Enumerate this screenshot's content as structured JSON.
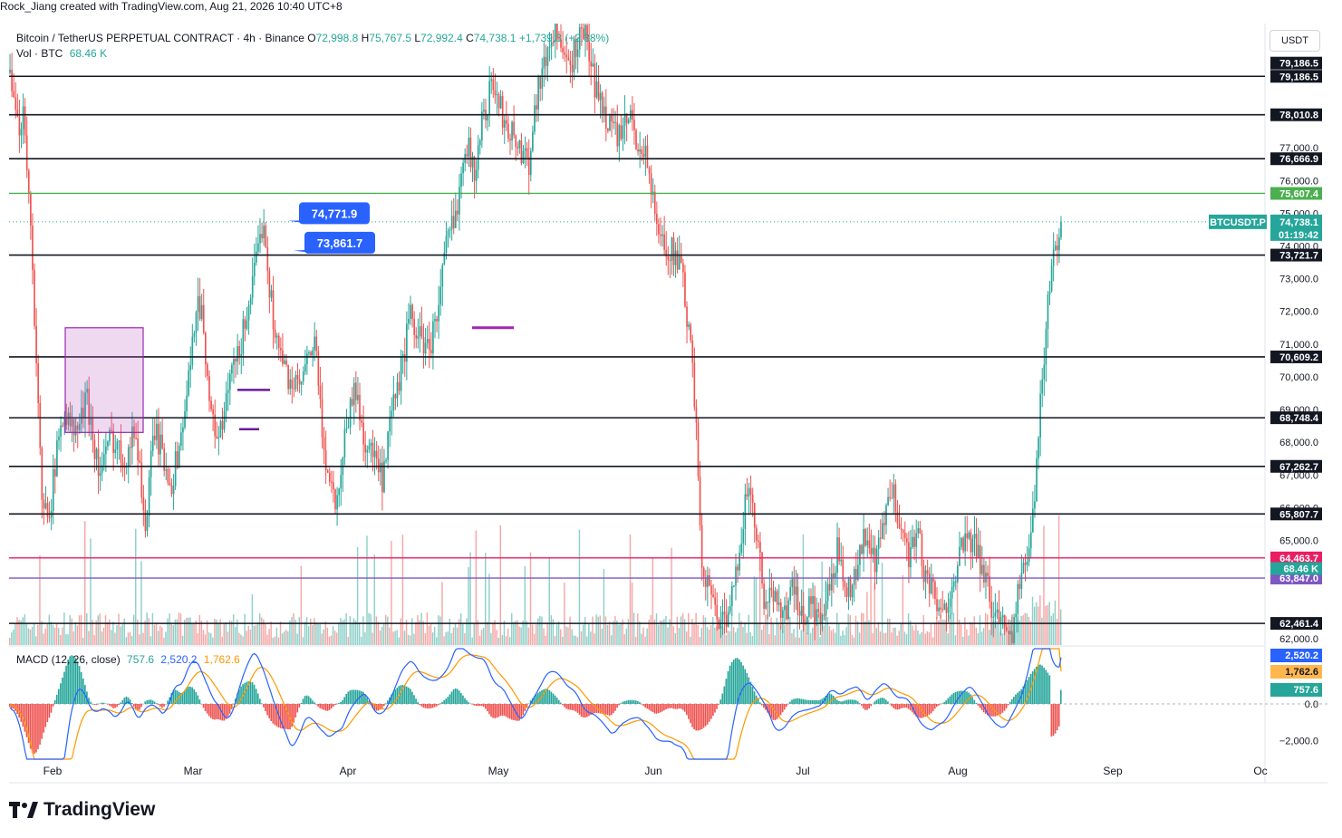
{
  "header": {
    "credit": "Rock_Jiang created with TradingView.com, Aug 21, 2026 10:40 UTC+8"
  },
  "legend": {
    "symbol": "Bitcoin / TetherUS PERPETUAL CONTRACT · 4h · Binance",
    "ohlc": [
      {
        "k": "O",
        "v": "72,998.8"
      },
      {
        "k": "H",
        "v": "75,767.5"
      },
      {
        "k": "L",
        "v": "72,992.4"
      },
      {
        "k": "C",
        "v": "74,738.1"
      }
    ],
    "change": "+1,739.3 (+2.38%)",
    "vol_label": "Vol · BTC",
    "vol_value": "68.46 K"
  },
  "macd": {
    "label": "MACD (12, 26, close)",
    "hist": "757.6",
    "macd": "2,520.2",
    "signal": "1,762.6"
  },
  "currency": "USDT",
  "brand": "TradingView",
  "colors": {
    "up": "#26a69a",
    "down": "#ef5350",
    "up_vol": "#8fd0c9",
    "down_vol": "#f4a8a6",
    "macd_line": "#2962ff",
    "signal_line": "#ff9800",
    "green_level": "#4caf50",
    "pink_level": "#e91e63",
    "purple_level": "#7e57c2",
    "callout": "#2962ff",
    "box": "#9c27b0"
  },
  "chart_data": {
    "type": "candlestick",
    "timeframe": "4h",
    "x_axis_labels": [
      "Feb",
      "Mar",
      "Apr",
      "May",
      "Jun",
      "Jul",
      "Aug",
      "Sep",
      "Oc"
    ],
    "ylim": [
      61800,
      80800
    ],
    "y_ticks": [
      "77,000.0",
      "76,000.0",
      "75,000.0",
      "74,000.0",
      "73,000.0",
      "72,000.0",
      "71,000.0",
      "70,000.0",
      "69,000.0",
      "68,000.0",
      "67,000.0",
      "66,000.0",
      "65,000.0",
      "62,000.0"
    ],
    "y_tick_values": [
      77000,
      76000,
      75000,
      74000,
      73000,
      72000,
      71000,
      70000,
      69000,
      68000,
      67000,
      66000,
      65000,
      62000
    ],
    "horizontal_levels": [
      {
        "value": 79186.5,
        "label": "79,186.5",
        "color": "black"
      },
      {
        "value": 78010.8,
        "label": "78,010.8",
        "color": "black"
      },
      {
        "value": 76666.9,
        "label": "76,666.9",
        "color": "black"
      },
      {
        "value": 75607.4,
        "label": "75,607.4",
        "color": "green"
      },
      {
        "value": 73721.7,
        "label": "73,721.7",
        "color": "black"
      },
      {
        "value": 70609.2,
        "label": "70,609.2",
        "color": "black"
      },
      {
        "value": 68748.4,
        "label": "68,748.4",
        "color": "black"
      },
      {
        "value": 67262.7,
        "label": "67,262.7",
        "color": "black"
      },
      {
        "value": 65807.7,
        "label": "65,807.7",
        "color": "black"
      },
      {
        "value": 64463.7,
        "label": "64,463.7",
        "color": "pink"
      },
      {
        "value": 63847.0,
        "label": "63,847.0",
        "color": "purple"
      },
      {
        "value": 62461.4,
        "label": "62,461.4",
        "color": "black"
      }
    ],
    "extra_price_tags": [
      {
        "value": 79590,
        "label": "79,186.5"
      }
    ],
    "current_price": {
      "value": 74738.1,
      "label": "74,738.1",
      "countdown": "01:19:42",
      "symbol": "BTCUSDT.P"
    },
    "volume_tag": "68.46 K",
    "callouts": [
      {
        "label": "74,771.9",
        "value": 74771.9
      },
      {
        "label": "73,861.7",
        "value": 73861.7
      }
    ],
    "price_path": [
      [
        0.0,
        79300
      ],
      [
        0.008,
        77500
      ],
      [
        0.013,
        78300
      ],
      [
        0.02,
        73500
      ],
      [
        0.028,
        65800
      ],
      [
        0.035,
        66200
      ],
      [
        0.045,
        69000
      ],
      [
        0.055,
        68200
      ],
      [
        0.065,
        69300
      ],
      [
        0.075,
        67000
      ],
      [
        0.085,
        68200
      ],
      [
        0.095,
        67500
      ],
      [
        0.105,
        68400
      ],
      [
        0.113,
        65300
      ],
      [
        0.12,
        68500
      ],
      [
        0.128,
        67400
      ],
      [
        0.135,
        66800
      ],
      [
        0.142,
        68200
      ],
      [
        0.15,
        70300
      ],
      [
        0.155,
        72600
      ],
      [
        0.16,
        71800
      ],
      [
        0.167,
        68600
      ],
      [
        0.175,
        68200
      ],
      [
        0.182,
        69900
      ],
      [
        0.19,
        70700
      ],
      [
        0.197,
        72200
      ],
      [
        0.204,
        73400
      ],
      [
        0.21,
        75000
      ],
      [
        0.215,
        72600
      ],
      [
        0.222,
        70800
      ],
      [
        0.23,
        70000
      ],
      [
        0.238,
        69600
      ],
      [
        0.245,
        70200
      ],
      [
        0.252,
        71200
      ],
      [
        0.257,
        68600
      ],
      [
        0.263,
        67000
      ],
      [
        0.27,
        66100
      ],
      [
        0.277,
        68400
      ],
      [
        0.285,
        69700
      ],
      [
        0.293,
        68000
      ],
      [
        0.3,
        67600
      ],
      [
        0.308,
        66700
      ],
      [
        0.315,
        68800
      ],
      [
        0.322,
        70000
      ],
      [
        0.33,
        71800
      ],
      [
        0.337,
        71300
      ],
      [
        0.345,
        70800
      ],
      [
        0.352,
        71800
      ],
      [
        0.36,
        74000
      ],
      [
        0.368,
        75000
      ],
      [
        0.375,
        77300
      ],
      [
        0.383,
        76300
      ],
      [
        0.39,
        77900
      ],
      [
        0.398,
        79000
      ],
      [
        0.405,
        78100
      ],
      [
        0.413,
        77500
      ],
      [
        0.42,
        77000
      ],
      [
        0.428,
        76600
      ],
      [
        0.435,
        78900
      ],
      [
        0.442,
        79700
      ],
      [
        0.45,
        80800
      ],
      [
        0.458,
        79300
      ],
      [
        0.465,
        79900
      ],
      [
        0.473,
        80700
      ],
      [
        0.48,
        79200
      ],
      [
        0.488,
        78200
      ],
      [
        0.495,
        77800
      ],
      [
        0.503,
        77200
      ],
      [
        0.51,
        78000
      ],
      [
        0.518,
        77100
      ],
      [
        0.525,
        76700
      ],
      [
        0.532,
        74600
      ],
      [
        0.54,
        74000
      ],
      [
        0.547,
        73800
      ],
      [
        0.553,
        73200
      ],
      [
        0.56,
        71200
      ],
      [
        0.565,
        68500
      ],
      [
        0.57,
        64400
      ],
      [
        0.577,
        63300
      ],
      [
        0.585,
        62600
      ],
      [
        0.592,
        62400
      ],
      [
        0.6,
        64700
      ],
      [
        0.607,
        66500
      ],
      [
        0.615,
        65200
      ],
      [
        0.622,
        62800
      ],
      [
        0.63,
        63600
      ],
      [
        0.637,
        62700
      ],
      [
        0.645,
        63500
      ],
      [
        0.652,
        62600
      ],
      [
        0.66,
        63100
      ],
      [
        0.667,
        62400
      ],
      [
        0.675,
        63500
      ],
      [
        0.682,
        64800
      ],
      [
        0.69,
        63500
      ],
      [
        0.697,
        64100
      ],
      [
        0.705,
        65300
      ],
      [
        0.712,
        64100
      ],
      [
        0.72,
        65700
      ],
      [
        0.727,
        66400
      ],
      [
        0.733,
        65600
      ],
      [
        0.74,
        64600
      ],
      [
        0.747,
        65300
      ],
      [
        0.753,
        64000
      ],
      [
        0.76,
        63300
      ],
      [
        0.767,
        62500
      ],
      [
        0.775,
        63800
      ],
      [
        0.782,
        64600
      ],
      [
        0.79,
        65000
      ],
      [
        0.797,
        64600
      ],
      [
        0.803,
        63700
      ],
      [
        0.81,
        62800
      ],
      [
        0.818,
        62500
      ],
      [
        0.825,
        62300
      ],
      [
        0.832,
        63900
      ],
      [
        0.84,
        64700
      ],
      [
        0.845,
        67500
      ],
      [
        0.85,
        70200
      ],
      [
        0.855,
        72800
      ],
      [
        0.86,
        73800
      ],
      [
        0.865,
        74738
      ]
    ],
    "macd_ylim": [
      -3000,
      3000
    ],
    "macd_ticks": [
      "0.0",
      "−2,000.0"
    ],
    "macd_tick_values": [
      0,
      -2000
    ],
    "macd_tags": [
      {
        "label": "2,520.2",
        "value": 2520.2,
        "color": "macd"
      },
      {
        "label": "1,762.6",
        "value": 1762.6,
        "color": "signal"
      },
      {
        "label": "757.6",
        "value": 757.6,
        "color": "hist"
      }
    ]
  }
}
